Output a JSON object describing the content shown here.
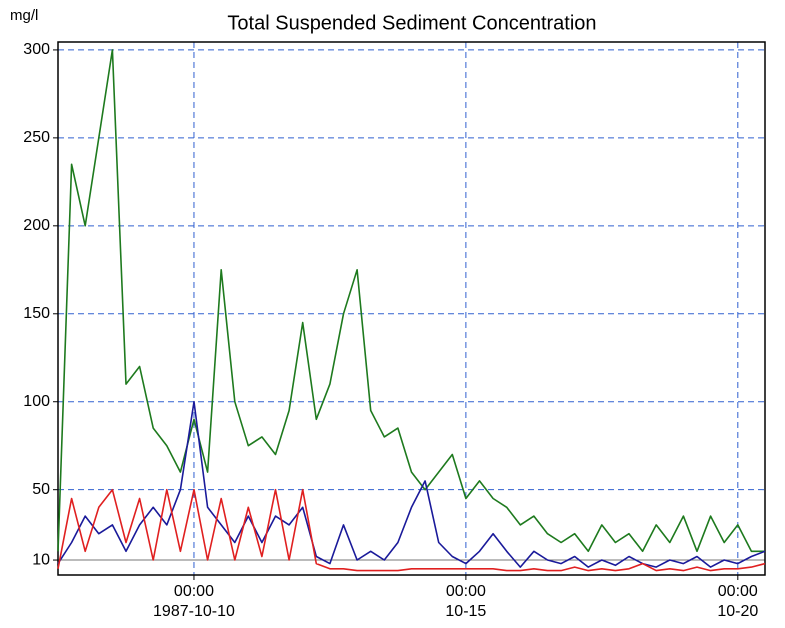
{
  "chart_data": {
    "type": "line",
    "title": "Total Suspended Sediment Concentration",
    "y_label": "mg/l",
    "x": [
      "1987-10-07T12:00",
      "1987-10-07T18:00",
      "1987-10-08T00:00",
      "1987-10-08T06:00",
      "1987-10-08T12:00",
      "1987-10-08T18:00",
      "1987-10-09T00:00",
      "1987-10-09T06:00",
      "1987-10-09T12:00",
      "1987-10-09T18:00",
      "1987-10-10T00:00",
      "1987-10-10T06:00",
      "1987-10-10T12:00",
      "1987-10-10T18:00",
      "1987-10-11T00:00",
      "1987-10-11T06:00",
      "1987-10-11T12:00",
      "1987-10-11T18:00",
      "1987-10-12T00:00",
      "1987-10-12T06:00",
      "1987-10-12T12:00",
      "1987-10-12T18:00",
      "1987-10-13T00:00",
      "1987-10-13T06:00",
      "1987-10-13T12:00",
      "1987-10-13T18:00",
      "1987-10-14T00:00",
      "1987-10-14T06:00",
      "1987-10-14T12:00",
      "1987-10-14T18:00",
      "1987-10-15T00:00",
      "1987-10-15T06:00",
      "1987-10-15T12:00",
      "1987-10-15T18:00",
      "1987-10-16T00:00",
      "1987-10-16T06:00",
      "1987-10-16T12:00",
      "1987-10-16T18:00",
      "1987-10-17T00:00",
      "1987-10-17T06:00",
      "1987-10-17T12:00",
      "1987-10-17T18:00",
      "1987-10-18T00:00",
      "1987-10-18T06:00",
      "1987-10-18T12:00",
      "1987-10-18T18:00",
      "1987-10-19T00:00",
      "1987-10-19T06:00",
      "1987-10-19T12:00",
      "1987-10-19T18:00",
      "1987-10-20T00:00",
      "1987-10-20T06:00",
      "1987-10-20T12:00"
    ],
    "series": [
      {
        "color": "#1e7a1e",
        "values": [
          15,
          235,
          200,
          250,
          300,
          110,
          120,
          85,
          75,
          60,
          90,
          60,
          175,
          100,
          75,
          80,
          70,
          95,
          145,
          90,
          110,
          150,
          175,
          95,
          80,
          85,
          60,
          50,
          60,
          70,
          45,
          55,
          45,
          40,
          30,
          35,
          25,
          20,
          25,
          15,
          30,
          20,
          25,
          15,
          30,
          20,
          35,
          15,
          35,
          20,
          30,
          15,
          15
        ]
      },
      {
        "color": "#1a1a9a",
        "values": [
          8,
          20,
          35,
          25,
          30,
          15,
          30,
          40,
          30,
          50,
          100,
          40,
          30,
          20,
          35,
          20,
          35,
          30,
          40,
          12,
          8,
          30,
          10,
          15,
          10,
          20,
          40,
          55,
          20,
          12,
          8,
          15,
          25,
          15,
          6,
          15,
          10,
          8,
          12,
          6,
          10,
          7,
          12,
          8,
          6,
          10,
          8,
          12,
          6,
          10,
          8,
          12,
          15
        ]
      },
      {
        "color": "#e02020",
        "values": [
          5,
          45,
          15,
          40,
          50,
          20,
          45,
          10,
          50,
          15,
          50,
          10,
          45,
          10,
          40,
          12,
          50,
          10,
          50,
          8,
          5,
          5,
          4,
          4,
          4,
          4,
          5,
          5,
          5,
          5,
          5,
          5,
          5,
          4,
          4,
          5,
          4,
          4,
          6,
          4,
          5,
          4,
          5,
          8,
          4,
          5,
          4,
          6,
          4,
          5,
          5,
          6,
          8
        ]
      }
    ],
    "xlim": [
      "1987-10-07T12:00",
      "1987-10-20T12:00"
    ],
    "xticks": [
      {
        "value": "1987-10-10T00:00",
        "label": "00:00\n1987-10-10"
      },
      {
        "value": "1987-10-15T00:00",
        "label": "00:00\n10-15"
      },
      {
        "value": "1987-10-20T00:00",
        "label": "00:00\n10-20"
      }
    ],
    "ylim": [
      1.5,
      304.5
    ],
    "yticks": [
      10,
      50,
      100,
      150,
      200,
      250,
      300
    ],
    "grid": true
  }
}
